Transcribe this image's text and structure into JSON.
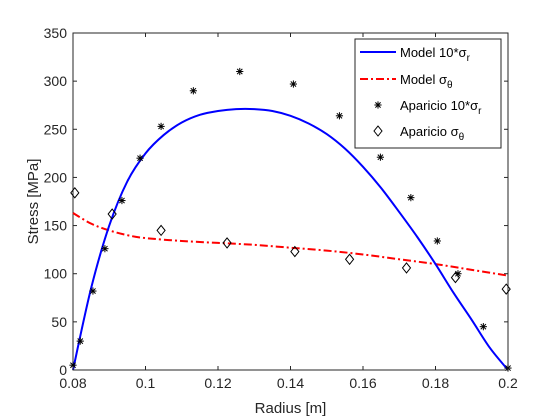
{
  "chart_data": {
    "type": "line",
    "xlabel": "Radius [m]",
    "ylabel": "Stress [MPa]",
    "xlim": [
      0.08,
      0.2
    ],
    "ylim": [
      0,
      350
    ],
    "xticks": [
      0.08,
      0.1,
      0.12,
      0.14,
      0.16,
      0.18,
      0.2
    ],
    "xtick_labels": [
      "0.08",
      "0.1",
      "0.12",
      "0.14",
      "0.16",
      "0.18",
      "0.2"
    ],
    "yticks": [
      0,
      50,
      100,
      150,
      200,
      250,
      300,
      350
    ],
    "ytick_labels": [
      "0",
      "50",
      "100",
      "150",
      "200",
      "250",
      "300",
      "350"
    ],
    "grid": false,
    "legend_position": "top-right",
    "series": [
      {
        "name": "Model 10*σr",
        "style": "solid line",
        "color": "#0000ff",
        "x": [
          0.08,
          0.085,
          0.09,
          0.095,
          0.1,
          0.105,
          0.11,
          0.115,
          0.12,
          0.125,
          0.13,
          0.135,
          0.14,
          0.145,
          0.15,
          0.155,
          0.16,
          0.165,
          0.17,
          0.175,
          0.18,
          0.185,
          0.19,
          0.195,
          0.2
        ],
        "y": [
          0,
          85,
          150,
          196,
          225,
          244,
          257,
          265,
          269,
          271,
          271,
          269,
          264,
          256,
          245,
          230,
          211,
          189,
          164,
          138,
          110,
          80,
          52,
          23,
          0
        ]
      },
      {
        "name": "Model σθ",
        "style": "dash-dot line",
        "color": "#ff0000",
        "x": [
          0.08,
          0.085,
          0.09,
          0.095,
          0.1,
          0.11,
          0.12,
          0.13,
          0.14,
          0.15,
          0.16,
          0.17,
          0.18,
          0.19,
          0.2
        ],
        "y": [
          163,
          152,
          145,
          140,
          137,
          134,
          132,
          130,
          127,
          124,
          120,
          115,
          110,
          104,
          98
        ]
      },
      {
        "name": "Aparicio 10*σr",
        "style": "asterisk markers",
        "color": "#000000",
        "x": [
          0.08,
          0.082,
          0.0855,
          0.0888,
          0.0935,
          0.0985,
          0.1043,
          0.1132,
          0.126,
          0.1408,
          0.1535,
          0.1648,
          0.1732,
          0.1805,
          0.1862,
          0.1932,
          0.2
        ],
        "y": [
          5,
          30,
          82,
          126,
          176,
          220,
          253,
          290,
          310,
          297,
          264,
          221,
          179,
          134,
          100,
          45,
          2
        ]
      },
      {
        "name": "Aparicio σθ",
        "style": "diamond markers",
        "color": "#000000",
        "x": [
          0.0805,
          0.0908,
          0.1043,
          0.1225,
          0.1412,
          0.1563,
          0.172,
          0.1855,
          0.1995
        ],
        "y": [
          184,
          162,
          145,
          132,
          123,
          115,
          106,
          96,
          84
        ]
      }
    ],
    "legend": [
      {
        "base": "Model 10*",
        "sym": "σ",
        "sub": "r"
      },
      {
        "base": "Model ",
        "sym": "σ",
        "sub": "θ"
      },
      {
        "base": "Aparicio 10*",
        "sym": "σ",
        "sub": "r"
      },
      {
        "base": "Aparicio ",
        "sym": "σ",
        "sub": "θ"
      }
    ]
  }
}
